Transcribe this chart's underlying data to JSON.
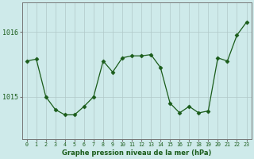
{
  "x": [
    0,
    1,
    2,
    3,
    4,
    5,
    6,
    7,
    8,
    9,
    10,
    11,
    12,
    13,
    14,
    15,
    16,
    17,
    18,
    19,
    20,
    21,
    22,
    23
  ],
  "y": [
    1015.55,
    1015.58,
    1015.0,
    1014.8,
    1014.72,
    1014.72,
    1014.85,
    1015.0,
    1015.55,
    1015.38,
    1015.6,
    1015.63,
    1015.63,
    1015.65,
    1015.45,
    1014.9,
    1014.75,
    1014.85,
    1014.75,
    1014.78,
    1015.6,
    1015.55,
    1015.95,
    1016.15
  ],
  "line_color": "#1a5c1a",
  "marker": "D",
  "marker_size": 2.5,
  "bg_color": "#ceeaea",
  "grid_color": "#b0c8c8",
  "xlabel": "Graphe pression niveau de la mer (hPa)",
  "yticks": [
    1015,
    1016
  ],
  "ylim": [
    1014.35,
    1016.45
  ],
  "xlim": [
    -0.5,
    23.5
  ],
  "xlabel_color": "#1a5c1a",
  "tick_color": "#1a5c1a",
  "axis_color": "#777777"
}
